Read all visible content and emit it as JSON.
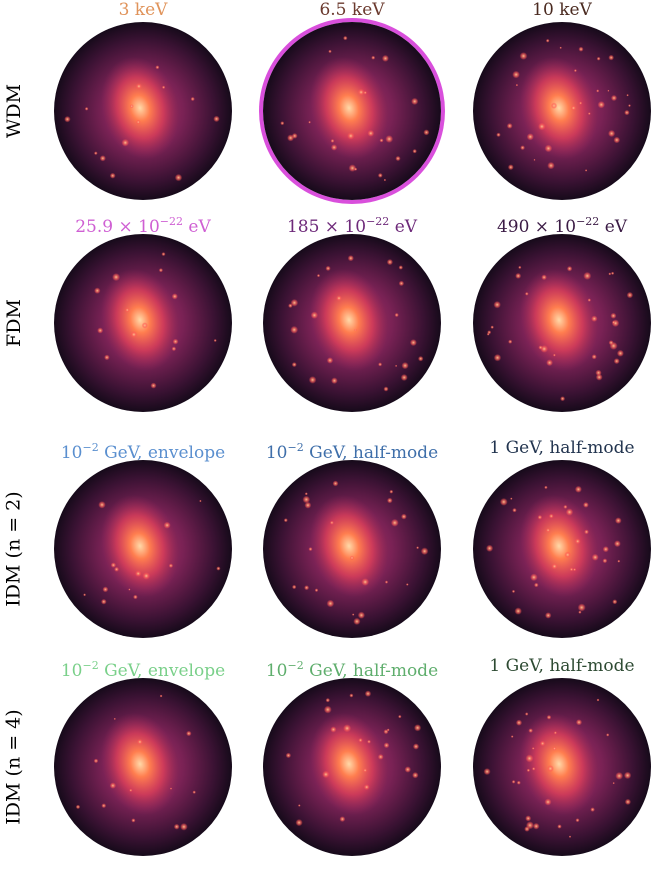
{
  "rows": [
    {
      "label": "WDM",
      "cols": [
        {
          "text": "3 keV",
          "exp": "",
          "suffix": "",
          "color": "#e0935a"
        },
        {
          "text": "6.5 keV",
          "exp": "",
          "suffix": "",
          "color": "#6b3a2e",
          "highlighted": true,
          "highlight_color": "#d94fdc"
        },
        {
          "text": "10 keV",
          "exp": "",
          "suffix": "",
          "color": "#4a2a20"
        }
      ]
    },
    {
      "label": "FDM",
      "cols": [
        {
          "text": "25.9 × 10",
          "exp": "−22",
          "suffix": " eV",
          "color": "#cf5fd3"
        },
        {
          "text": "185 × 10",
          "exp": "−22",
          "suffix": " eV",
          "color": "#6e2a7a"
        },
        {
          "text": "490 × 10",
          "exp": "−22",
          "suffix": " eV",
          "color": "#3b1b45"
        }
      ]
    },
    {
      "label": "IDM (n = 2)",
      "cols": [
        {
          "text": "10",
          "exp": "−2",
          "suffix": " GeV, envelope",
          "color": "#5a8fcf"
        },
        {
          "text": "10",
          "exp": "−2",
          "suffix": " GeV, half-mode",
          "color": "#3f6faa"
        },
        {
          "text": "1 GeV, half-mode",
          "exp": "",
          "suffix": "",
          "color": "#22344f"
        }
      ]
    },
    {
      "label": "IDM (n = 4)",
      "cols": [
        {
          "text": "10",
          "exp": "−2",
          "suffix": " GeV, envelope",
          "color": "#7ad08a"
        },
        {
          "text": "10",
          "exp": "−2",
          "suffix": " GeV, half-mode",
          "color": "#5fae6d"
        },
        {
          "text": "1 GeV, half-mode",
          "exp": "",
          "suffix": "",
          "color": "#2d4a32"
        }
      ]
    }
  ]
}
